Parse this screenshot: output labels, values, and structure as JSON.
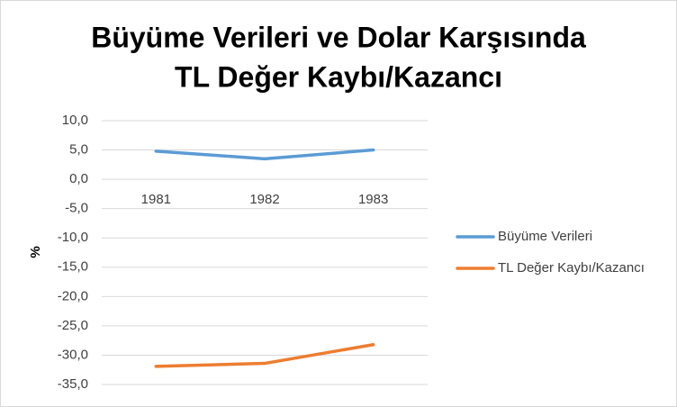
{
  "chart_data": {
    "type": "line",
    "title": [
      "Büyüme Verileri ve Dolar Karşısında",
      "TL Değer Kaybı/Kazancı"
    ],
    "y_label": "%",
    "categories": [
      "1981",
      "1982",
      "1983"
    ],
    "series": [
      {
        "name": "Büyüme Verileri",
        "color": "#5b9bd5",
        "values": [
          4.8,
          3.5,
          5.0
        ]
      },
      {
        "name": "TL Değer Kaybı/Kazancı",
        "color": "#ed7d31",
        "values": [
          -31.9,
          -31.4,
          -28.2
        ]
      }
    ],
    "ylim": [
      -35,
      10
    ],
    "yticks": [
      {
        "value": 10,
        "label": "10,0"
      },
      {
        "value": 5,
        "label": "5,0"
      },
      {
        "value": 0,
        "label": "0,0"
      },
      {
        "value": -5,
        "label": "-5,0"
      },
      {
        "value": -10,
        "label": "-10,0"
      },
      {
        "value": -15,
        "label": "-15,0"
      },
      {
        "value": -20,
        "label": "-20,0"
      },
      {
        "value": -25,
        "label": "-25,0"
      },
      {
        "value": -30,
        "label": "-30,0"
      },
      {
        "value": -35,
        "label": "-35,0"
      }
    ],
    "grid": true,
    "legend": "right"
  }
}
